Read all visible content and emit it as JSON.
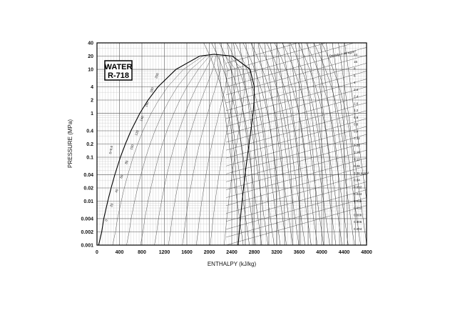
{
  "chart_data": {
    "type": "line",
    "title_box": [
      "WATER",
      "R-718"
    ],
    "xlabel": "ENTHALPY (kJ/kg)",
    "ylabel": "PRESSURE (MPa)",
    "xlim": [
      0,
      4800
    ],
    "ylim": [
      0.001,
      40
    ],
    "y_scale": "log",
    "grid": true,
    "x_ticks": [
      0,
      400,
      800,
      1200,
      1600,
      2000,
      2400,
      2800,
      3200,
      3600,
      4000,
      4400,
      4800
    ],
    "y_ticks": [
      0.001,
      0.002,
      0.004,
      0.01,
      0.02,
      0.04,
      0.1,
      0.2,
      0.4,
      1,
      2,
      4,
      10,
      20,
      40
    ],
    "y_tick_labels": [
      "0.001",
      "0.002",
      "0.004",
      "0.01",
      "0.02",
      "0.04",
      "0.1",
      "0.2",
      "0.4",
      "1",
      "2",
      "4",
      "10",
      "20",
      "40"
    ],
    "saturation_dome": {
      "liquid_line": [
        [
          29,
          0.001
        ],
        [
          84,
          0.002
        ],
        [
          121,
          0.004
        ],
        [
          192,
          0.01
        ],
        [
          251,
          0.02
        ],
        [
          318,
          0.04
        ],
        [
          417,
          0.1
        ],
        [
          505,
          0.2
        ],
        [
          605,
          0.4
        ],
        [
          763,
          1
        ],
        [
          909,
          2
        ],
        [
          1087,
          4
        ],
        [
          1408,
          10
        ],
        [
          1827,
          20
        ],
        [
          2084,
          22.064
        ]
      ],
      "vapor_line": [
        [
          2084,
          22.064
        ],
        [
          2410,
          20
        ],
        [
          2725,
          10
        ],
        [
          2801,
          4
        ],
        [
          2799,
          2
        ],
        [
          2778,
          1
        ],
        [
          2739,
          0.4
        ],
        [
          2707,
          0.2
        ],
        [
          2675,
          0.1
        ],
        [
          2636,
          0.04
        ],
        [
          2609,
          0.02
        ],
        [
          2584,
          0.01
        ],
        [
          2554,
          0.004
        ],
        [
          2533,
          0.002
        ],
        [
          2513,
          0.001
        ]
      ]
    },
    "density_lines": {
      "unit_label": "Density = 40 kg/m³",
      "values": [
        "40",
        "24",
        "16",
        "8",
        "6",
        "4",
        "3.2",
        "2.4",
        "1.6",
        "1.2",
        "0.8",
        "0.6",
        "0.4",
        "0.32",
        "0.24",
        "0.16",
        "0.12",
        "0.08",
        "0.06 kg/m³",
        "0.04",
        "0.032",
        "0.024",
        "0.016",
        "0.012",
        "0.008",
        "0.006",
        "0.004"
      ]
    },
    "temperature_labels": [
      "200",
      "180",
      "160",
      "140",
      "120",
      "100",
      "80",
      "60",
      "40",
      "20",
      "0"
    ],
    "quality_label": "S=0.6"
  }
}
